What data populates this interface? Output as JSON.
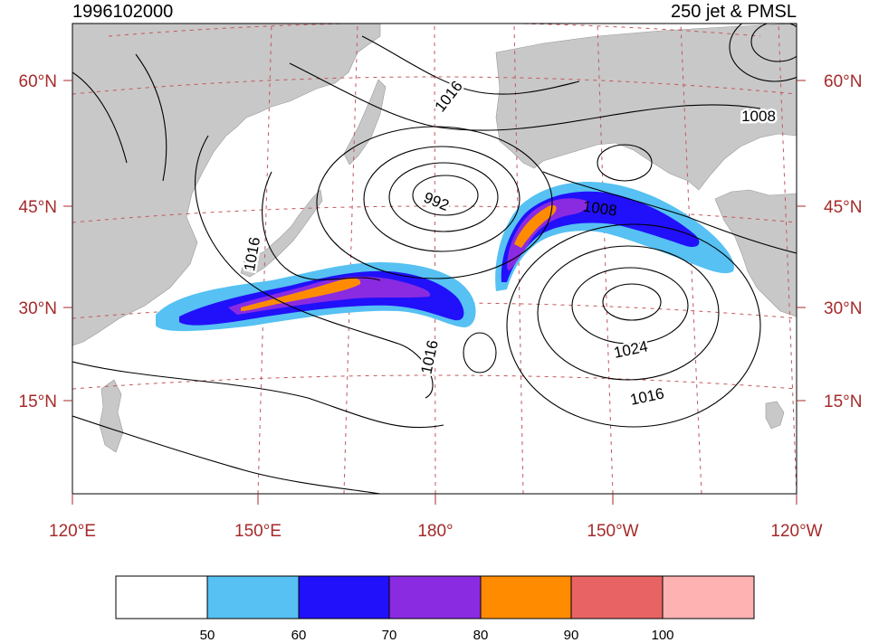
{
  "title_left": "1996102000",
  "title_right": "250 jet & PMSL",
  "lat_labels": [
    "15°N",
    "30°N",
    "45°N",
    "60°N"
  ],
  "lon_labels": [
    "120°E",
    "150°E",
    "180°",
    "150°W",
    "120°W"
  ],
  "contour_labels": [
    "1016",
    "1016",
    "992",
    "1008",
    "1008",
    "1016",
    "1024",
    "1016"
  ],
  "colorbar": {
    "colors": [
      "#ffffff",
      "#56c1f2",
      "#2110fa",
      "#8a2be2",
      "#ff8c00",
      "#e86464",
      "#ffb2b2"
    ],
    "labels": [
      "50",
      "60",
      "70",
      "80",
      "90",
      "100"
    ]
  },
  "colors": {
    "land": "#c8c8c8",
    "grid": "#c4575b",
    "axis_label": "#a52a2a",
    "jet_50": "#56c1f2",
    "jet_60": "#2110fa",
    "jet_70": "#8a2be2",
    "jet_80": "#ff8c00"
  }
}
